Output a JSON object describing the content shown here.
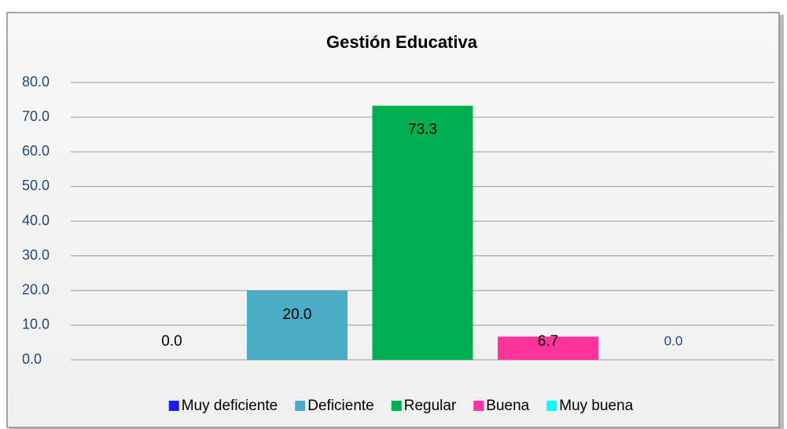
{
  "chart_data": {
    "type": "bar",
    "title": "Gestión Educativa",
    "series": [
      {
        "name": "Muy deficiente",
        "color": "#1a1aff",
        "values": [
          0
        ],
        "value_labels": [
          "0.0"
        ]
      },
      {
        "name": "Deficiente",
        "color": "#4bacc6",
        "values": [
          20
        ],
        "value_labels": [
          "20.0"
        ]
      },
      {
        "name": "Regular",
        "color": "#00b050",
        "values": [
          73.3
        ],
        "value_labels": [
          "73.3"
        ]
      },
      {
        "name": "Buena",
        "color": "#ff3399",
        "values": [
          6.7
        ],
        "value_labels": [
          "6.7"
        ]
      },
      {
        "name": "Muy buena",
        "color": "#00ffff",
        "values": [
          0
        ],
        "value_labels": [
          "0.0"
        ]
      }
    ],
    "ylim": [
      0,
      80
    ],
    "yticks": [
      {
        "value": 0,
        "label": "0.0"
      },
      {
        "value": 10,
        "label": "10.0"
      },
      {
        "value": 20,
        "label": "20.0"
      },
      {
        "value": 30,
        "label": "30.0"
      },
      {
        "value": 40,
        "label": "40.0"
      },
      {
        "value": 50,
        "label": "50.0"
      },
      {
        "value": 60,
        "label": "60.0"
      },
      {
        "value": 70,
        "label": "70.0"
      },
      {
        "value": 80,
        "label": "80.0"
      }
    ],
    "grid": true,
    "legend": "bottom"
  }
}
